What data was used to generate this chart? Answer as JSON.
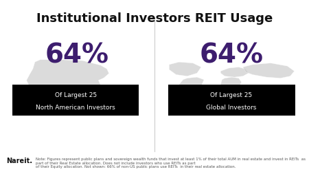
{
  "title": "Institutional Investors REIT Usage",
  "title_fontsize": 13,
  "title_fontweight": "bold",
  "background_color": "#ffffff",
  "panel_bg": "#ffffff",
  "left_percentage": "64%",
  "right_percentage": "64%",
  "left_label_line1": "Of Largest 25",
  "left_label_line2": "North American Investors",
  "right_label_line1": "Of Largest 25",
  "right_label_line2": "Global Investors",
  "percentage_color": "#3d1d6e",
  "label_bg_color": "#000000",
  "label_text_color": "#ffffff",
  "map_color": "#cccccc",
  "divider_color": "#cccccc",
  "nareit_text": "Nareit.",
  "footnote": "Note: Figures represent public plans and sovereign wealth funds that invest at least 1% of their total AUM in real estate and invest in REITs  as part of their Real Estate allocation. Does not include investors who use REITs as part\nof their Equity allocation. Not shown: 66% of non-US public plans use REITs  in their real estate allocation.",
  "footnote_fontsize": 4.0,
  "nareit_fontsize": 7
}
